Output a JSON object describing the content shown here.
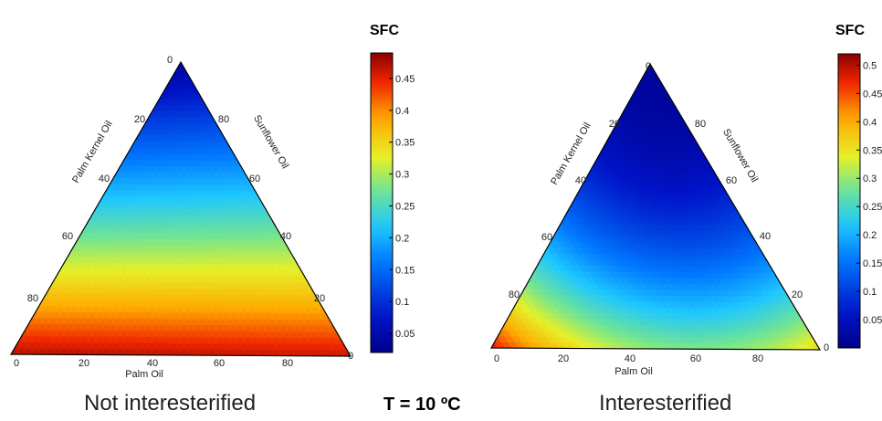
{
  "chart_data": [
    {
      "type": "heatmap",
      "subtype": "ternary",
      "caption": "Not interesterified",
      "axes": {
        "bottom": {
          "label": "Palm Oil",
          "ticks": [
            "0",
            "20",
            "40",
            "60",
            "80"
          ]
        },
        "left": {
          "label": "Palm Kernel Oil",
          "ticks": [
            "0",
            "20",
            "40",
            "60",
            "80"
          ]
        },
        "right": {
          "label": "Sunflower Oil",
          "ticks": [
            "0",
            "20",
            "40",
            "60",
            "80"
          ]
        }
      },
      "colorbar": {
        "title": "SFC",
        "ticks": [
          "0.05",
          "0.1",
          "0.15",
          "0.2",
          "0.25",
          "0.3",
          "0.35",
          "0.4",
          "0.45"
        ],
        "range": [
          0.02,
          0.49
        ]
      },
      "sfc_at_vertices": {
        "sunflower_oil_100": 0.04,
        "palm_kernel_oil_100": 0.47,
        "palm_oil_100": 0.46
      }
    },
    {
      "type": "heatmap",
      "subtype": "ternary",
      "caption": "Interesterified",
      "axes": {
        "bottom": {
          "label": "Palm Oil",
          "ticks": [
            "0",
            "20",
            "40",
            "60",
            "80"
          ]
        },
        "left": {
          "label": "Palm Kernel Oil",
          "ticks": [
            "0",
            "20",
            "40",
            "60",
            "80"
          ]
        },
        "right": {
          "label": "Sunflower Oil",
          "ticks": [
            "0",
            "20",
            "40",
            "60",
            "80"
          ]
        }
      },
      "colorbar": {
        "title": "SFC",
        "ticks": [
          "0.05",
          "0.1",
          "0.15",
          "0.2",
          "0.25",
          "0.3",
          "0.35",
          "0.4",
          "0.45",
          "0.5"
        ],
        "range": [
          0.0,
          0.52
        ]
      },
      "sfc_at_vertices": {
        "sunflower_oil_100": 0.02,
        "palm_kernel_oil_100": 0.48,
        "palm_oil_100": 0.36
      }
    }
  ],
  "center_label": "T = 10 ºC"
}
